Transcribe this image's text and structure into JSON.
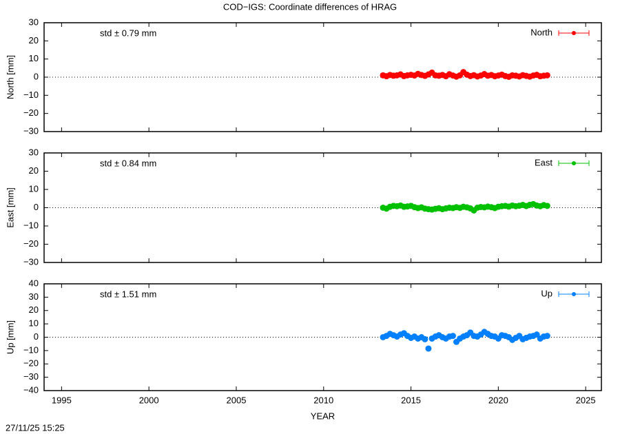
{
  "title": "COD−IGS: Coordinate differences of HRAG",
  "timestamp": "27/11/25 15:25",
  "chart_data": [
    {
      "type": "scatter",
      "ylabel": "North [mm]",
      "annotation": "std ± 0.79 mm",
      "xlim": [
        1994,
        2025.9
      ],
      "xticks": [
        1995,
        2000,
        2005,
        2010,
        2015,
        2020,
        2025
      ],
      "ylim": [
        -30,
        30
      ],
      "yticks": [
        {
          "value": -30,
          "label": "−30"
        },
        {
          "value": -20,
          "label": "−20"
        },
        {
          "value": -10,
          "label": "−10"
        },
        0,
        10,
        20,
        30
      ],
      "series": [
        {
          "name": "North",
          "color": "#ff0000",
          "x": [
            2013.4,
            2013.6,
            2013.8,
            2014.0,
            2014.2,
            2014.4,
            2014.6,
            2014.8,
            2015.0,
            2015.2,
            2015.4,
            2015.6,
            2015.8,
            2016.0,
            2016.2,
            2016.4,
            2016.6,
            2016.8,
            2017.0,
            2017.2,
            2017.4,
            2017.6,
            2017.8,
            2018.0,
            2018.2,
            2018.4,
            2018.6,
            2018.8,
            2019.0,
            2019.2,
            2019.4,
            2019.6,
            2019.8,
            2020.0,
            2020.2,
            2020.4,
            2020.6,
            2020.8,
            2021.0,
            2021.2,
            2021.4,
            2021.6,
            2021.8,
            2022.0,
            2022.2,
            2022.4,
            2022.6,
            2022.8
          ],
          "values": [
            1,
            0.5,
            1.2,
            0.8,
            1,
            1.5,
            0.6,
            1,
            1.3,
            0.9,
            1.8,
            1.2,
            0.7,
            1.5,
            2.5,
            1,
            0.8,
            1.2,
            0.5,
            1.6,
            0.9,
            0.3,
            1,
            2.8,
            1.4,
            0.6,
            1.1,
            0.4,
            0.9,
            1.7,
            0.8,
            1.2,
            0.5,
            0.9,
            1.4,
            0.6,
            0.2,
            1,
            0.8,
            0.4,
            1.1,
            0.7,
            0.3,
            0.9,
            1.3,
            0.5,
            0.8,
            1
          ]
        }
      ]
    },
    {
      "type": "scatter",
      "ylabel": "East [mm]",
      "annotation": "std ± 0.84 mm",
      "xlim": [
        1994,
        2025.9
      ],
      "xticks": [
        1995,
        2000,
        2005,
        2010,
        2015,
        2020,
        2025
      ],
      "ylim": [
        -30,
        30
      ],
      "yticks": [
        {
          "value": -30,
          "label": "−30"
        },
        {
          "value": -20,
          "label": "−20"
        },
        {
          "value": -10,
          "label": "−10"
        },
        0,
        10,
        20,
        30
      ],
      "series": [
        {
          "name": "East",
          "color": "#00c000",
          "x": [
            2013.4,
            2013.6,
            2013.8,
            2014.0,
            2014.2,
            2014.4,
            2014.6,
            2014.8,
            2015.0,
            2015.2,
            2015.4,
            2015.6,
            2015.8,
            2016.0,
            2016.2,
            2016.4,
            2016.6,
            2016.8,
            2017.0,
            2017.2,
            2017.4,
            2017.6,
            2017.8,
            2018.0,
            2018.2,
            2018.4,
            2018.6,
            2018.8,
            2019.0,
            2019.2,
            2019.4,
            2019.6,
            2019.8,
            2020.0,
            2020.2,
            2020.4,
            2020.6,
            2020.8,
            2021.0,
            2021.2,
            2021.4,
            2021.6,
            2021.8,
            2022.0,
            2022.2,
            2022.4,
            2022.6,
            2022.8
          ],
          "values": [
            0,
            -0.5,
            0.5,
            1,
            0.8,
            1.2,
            0.5,
            0.7,
            1,
            0.3,
            -0.2,
            0.2,
            -0.5,
            -0.8,
            -1,
            -0.6,
            -0.3,
            -0.8,
            -0.4,
            0,
            -0.2,
            0.3,
            -0.1,
            0.5,
            0.2,
            -0.4,
            -1.5,
            0,
            0.4,
            0.2,
            0.6,
            0.3,
            -0.2,
            0.5,
            0.8,
            1,
            0.6,
            1.2,
            0.8,
            1.1,
            1.5,
            0.9,
            1.6,
            2,
            1.2,
            0.8,
            1.4,
            1
          ]
        }
      ]
    },
    {
      "type": "scatter",
      "ylabel": "Up [mm]",
      "annotation": "std ± 1.51 mm",
      "xlabel": "YEAR",
      "xlim": [
        1994,
        2025.9
      ],
      "xticks": [
        1995,
        2000,
        2005,
        2010,
        2015,
        2020,
        2025
      ],
      "ylim": [
        -40,
        40
      ],
      "yticks": [
        {
          "value": -40,
          "label": "−40"
        },
        {
          "value": -30,
          "label": "−30"
        },
        {
          "value": -20,
          "label": "−20"
        },
        {
          "value": -10,
          "label": "−10"
        },
        0,
        10,
        20,
        30,
        40
      ],
      "series": [
        {
          "name": "Up",
          "color": "#0080ff",
          "x": [
            2013.4,
            2013.6,
            2013.8,
            2014.0,
            2014.2,
            2014.4,
            2014.6,
            2014.8,
            2015.0,
            2015.2,
            2015.4,
            2015.6,
            2015.8,
            2016.0,
            2016.2,
            2016.4,
            2016.6,
            2016.8,
            2017.0,
            2017.2,
            2017.4,
            2017.6,
            2017.8,
            2018.0,
            2018.2,
            2018.4,
            2018.6,
            2018.8,
            2019.0,
            2019.2,
            2019.4,
            2019.6,
            2019.8,
            2020.0,
            2020.2,
            2020.4,
            2020.6,
            2020.8,
            2021.0,
            2021.2,
            2021.4,
            2021.6,
            2021.8,
            2022.0,
            2022.2,
            2022.4,
            2022.6,
            2022.8
          ],
          "values": [
            0,
            1,
            2.5,
            1.5,
            0.5,
            2,
            3,
            1,
            -0.5,
            0.5,
            -1,
            0,
            -1.5,
            -8.5,
            -1,
            0.5,
            1.5,
            0,
            -1,
            0.5,
            1,
            -3.5,
            -1,
            0.5,
            1.5,
            3.5,
            1,
            0.5,
            2,
            4,
            2.5,
            1,
            0.5,
            -1,
            1.5,
            1,
            0,
            -2,
            -0.5,
            1,
            -1.5,
            -0.5,
            0.5,
            1,
            2,
            -1,
            0.5,
            1
          ]
        }
      ]
    }
  ]
}
